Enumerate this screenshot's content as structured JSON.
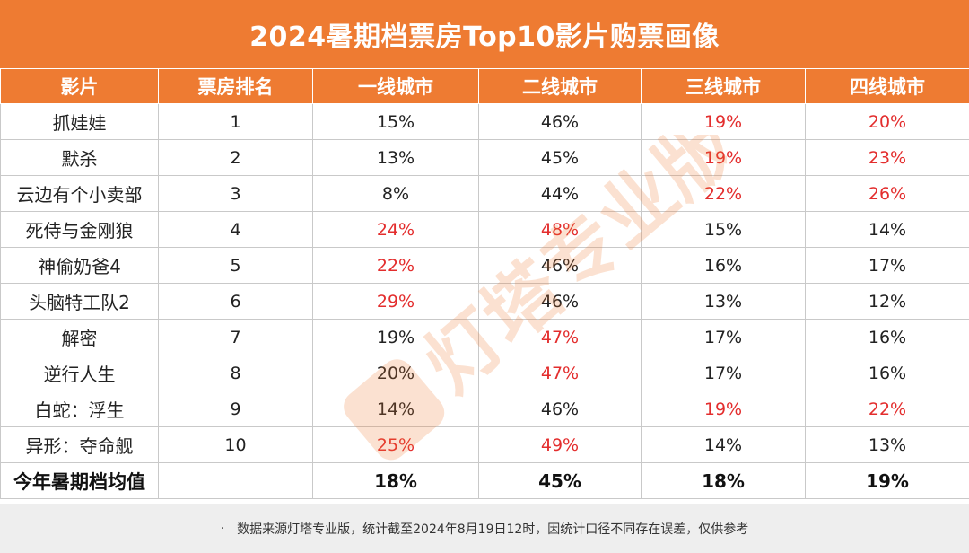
{
  "title": "2024暑期档票房Top10影片购票画像",
  "headers": [
    "影片",
    "票房排名",
    "一线城市",
    "二线城市",
    "三线城市",
    "四线城市"
  ],
  "chart_data": {
    "type": "table",
    "title": "2024暑期档票房Top10影片购票画像",
    "columns": [
      "影片",
      "票房排名",
      "一线城市",
      "二线城市",
      "三线城市",
      "四线城市"
    ],
    "rows": [
      {
        "film": "抓娃娃",
        "rank": "1",
        "t1": "15%",
        "t2": "46%",
        "t3": "19%",
        "t4": "20%"
      },
      {
        "film": "默杀",
        "rank": "2",
        "t1": "13%",
        "t2": "45%",
        "t3": "19%",
        "t4": "23%"
      },
      {
        "film": "云边有个小卖部",
        "rank": "3",
        "t1": "8%",
        "t2": "44%",
        "t3": "22%",
        "t4": "26%"
      },
      {
        "film": "死侍与金刚狼",
        "rank": "4",
        "t1": "24%",
        "t2": "48%",
        "t3": "15%",
        "t4": "14%"
      },
      {
        "film": "神偷奶爸4",
        "rank": "5",
        "t1": "22%",
        "t2": "46%",
        "t3": "16%",
        "t4": "17%"
      },
      {
        "film": "头脑特工队2",
        "rank": "6",
        "t1": "29%",
        "t2": "46%",
        "t3": "13%",
        "t4": "12%"
      },
      {
        "film": "解密",
        "rank": "7",
        "t1": "19%",
        "t2": "47%",
        "t3": "17%",
        "t4": "16%"
      },
      {
        "film": "逆行人生",
        "rank": "8",
        "t1": "20%",
        "t2": "47%",
        "t3": "17%",
        "t4": "16%"
      },
      {
        "film": "白蛇：浮生",
        "rank": "9",
        "t1": "14%",
        "t2": "46%",
        "t3": "19%",
        "t4": "22%"
      },
      {
        "film": "异形：夺命舰",
        "rank": "10",
        "t1": "25%",
        "t2": "49%",
        "t3": "14%",
        "t4": "13%"
      }
    ],
    "average": {
      "label": "今年暑期档均值",
      "t1": "18%",
      "t2": "45%",
      "t3": "18%",
      "t4": "19%"
    },
    "highlighted": [
      [
        false,
        false,
        true,
        true
      ],
      [
        false,
        false,
        true,
        true
      ],
      [
        false,
        false,
        true,
        true
      ],
      [
        true,
        true,
        false,
        false
      ],
      [
        true,
        false,
        false,
        false
      ],
      [
        true,
        false,
        false,
        false
      ],
      [
        false,
        true,
        false,
        false
      ],
      [
        false,
        true,
        false,
        false
      ],
      [
        false,
        false,
        true,
        true
      ],
      [
        true,
        true,
        false,
        false
      ]
    ]
  },
  "colors": {
    "header_bg": "#ee7b32",
    "highlight_text": "#e32d2d",
    "footer_bg": "#eeeeee"
  },
  "watermark": {
    "text": "灯塔专业版",
    "icon": "lighthouse-logo-icon"
  },
  "footer": {
    "bullet": "·",
    "note": "数据来源灯塔专业版，统计截至2024年8月19日12时，因统计口径不同存在误差，仅供参考"
  }
}
